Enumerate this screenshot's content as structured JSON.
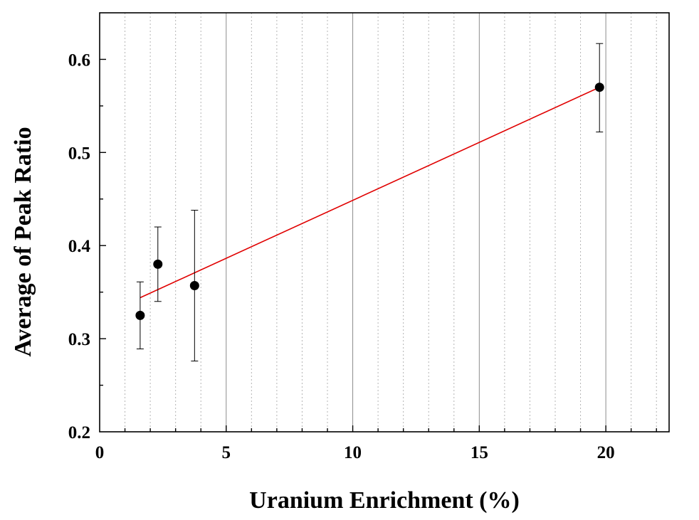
{
  "chart_data": {
    "type": "scatter",
    "xlabel": "Uranium Enrichment (%)",
    "ylabel": "Average of Peak Ratio",
    "xlim": [
      0,
      22.5
    ],
    "ylim": [
      0.2,
      0.65
    ],
    "x_major_ticks": [
      0,
      5,
      10,
      15,
      20
    ],
    "x_tick_labels": [
      "0",
      "5",
      "10",
      "15",
      "20"
    ],
    "y_major_ticks": [
      0.2,
      0.3,
      0.4,
      0.5,
      0.6
    ],
    "y_tick_labels": [
      "0.2",
      "0.3",
      "0.4",
      "0.5",
      "0.6"
    ],
    "x_minor_tick_step": 1,
    "y_minor_tick_step": 0.05,
    "grid": {
      "major_x": true,
      "minor_x": true,
      "y": false
    },
    "colors": {
      "points": "#000000",
      "fit_line": "#e00000",
      "major_grid": "#8c8c8c",
      "minor_grid": "#b4b4b4"
    },
    "series": [
      {
        "points": [
          {
            "x": 1.6,
            "y": 0.325,
            "err_low": 0.289,
            "err_high": 0.361
          },
          {
            "x": 2.3,
            "y": 0.38,
            "err_low": 0.34,
            "err_high": 0.42
          },
          {
            "x": 3.75,
            "y": 0.357,
            "err_low": 0.276,
            "err_high": 0.438
          },
          {
            "x": 19.75,
            "y": 0.57,
            "err_low": 0.522,
            "err_high": 0.617
          }
        ]
      }
    ],
    "fit_line": {
      "x": [
        1.6,
        19.75
      ],
      "y": [
        0.344,
        0.57
      ]
    }
  }
}
